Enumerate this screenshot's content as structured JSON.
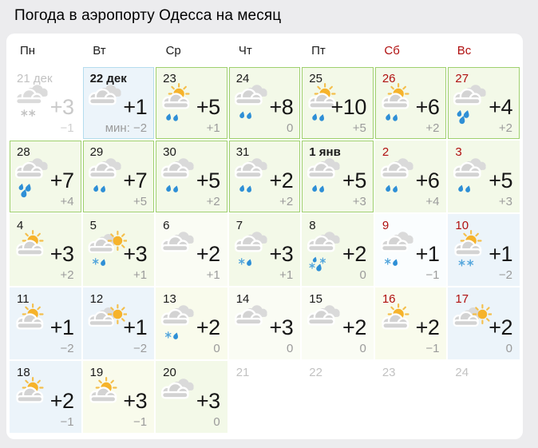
{
  "title": "Погода в аэропорту Одесса на месяц",
  "weekdays": [
    {
      "label": "Пн",
      "weekend": false
    },
    {
      "label": "Вт",
      "weekend": false
    },
    {
      "label": "Ср",
      "weekend": false
    },
    {
      "label": "Чт",
      "weekend": false
    },
    {
      "label": "Пт",
      "weekend": false
    },
    {
      "label": "Сб",
      "weekend": true
    },
    {
      "label": "Вс",
      "weekend": true
    }
  ],
  "cells": [
    {
      "day": "21 дек",
      "muted": true,
      "icon": "cloud",
      "precip": "snow-muted",
      "tmax": "+3",
      "tmin": "−1",
      "bg": "white",
      "border": "none"
    },
    {
      "day": "22 дек",
      "bold": true,
      "icon": "cloud",
      "precip": "none",
      "tmax": "+1",
      "tmin": "мин: −2",
      "bg": "blue",
      "border": "blue"
    },
    {
      "day": "23",
      "icon": "sun-cloud",
      "precip": "rain2",
      "tmax": "+5",
      "tmin": "+1",
      "bg": "green",
      "border": "green"
    },
    {
      "day": "24",
      "icon": "cloud",
      "precip": "rain2",
      "tmax": "+8",
      "tmin": "0",
      "bg": "green",
      "border": "green"
    },
    {
      "day": "25",
      "icon": "sun-cloud",
      "precip": "rain2",
      "tmax": "+10",
      "tmin": "+5",
      "bg": "green",
      "border": "green"
    },
    {
      "day": "26",
      "weekend": true,
      "icon": "sun-cloud",
      "precip": "rain2",
      "tmax": "+6",
      "tmin": "+2",
      "bg": "green",
      "border": "green"
    },
    {
      "day": "27",
      "weekend": true,
      "icon": "cloud",
      "precip": "rain3",
      "tmax": "+4",
      "tmin": "+2",
      "bg": "green",
      "border": "green"
    },
    {
      "day": "28",
      "icon": "cloud",
      "precip": "rain3",
      "tmax": "+7",
      "tmin": "+4",
      "bg": "green",
      "border": "green"
    },
    {
      "day": "29",
      "icon": "cloud",
      "precip": "rain2",
      "tmax": "+7",
      "tmin": "+5",
      "bg": "green",
      "border": "green"
    },
    {
      "day": "30",
      "icon": "cloud",
      "precip": "rain2",
      "tmax": "+5",
      "tmin": "+2",
      "bg": "green",
      "border": "green"
    },
    {
      "day": "31",
      "icon": "cloud",
      "precip": "rain2",
      "tmax": "+2",
      "tmin": "+2",
      "bg": "green",
      "border": "green"
    },
    {
      "day": "1 янв",
      "bold": true,
      "icon": "cloud",
      "precip": "rain2",
      "tmax": "+5",
      "tmin": "+3",
      "bg": "green",
      "border": "green"
    },
    {
      "day": "2",
      "weekend": true,
      "icon": "cloud",
      "precip": "rain2",
      "tmax": "+6",
      "tmin": "+4",
      "bg": "green",
      "border": "none"
    },
    {
      "day": "3",
      "weekend": true,
      "icon": "cloud",
      "precip": "rain2",
      "tmax": "+5",
      "tmin": "+3",
      "bg": "green",
      "border": "none"
    },
    {
      "day": "4",
      "icon": "sun-cloud",
      "precip": "none",
      "tmax": "+3",
      "tmin": "+2",
      "bg": "green",
      "border": "none"
    },
    {
      "day": "5",
      "icon": "cloud-sun",
      "precip": "sleet",
      "tmax": "+3",
      "tmin": "+1",
      "bg": "green",
      "border": "none"
    },
    {
      "day": "6",
      "icon": "cloud",
      "precip": "none",
      "tmax": "+2",
      "tmin": "+1",
      "bg": "green_light",
      "border": "none"
    },
    {
      "day": "7",
      "icon": "cloud",
      "precip": "sleet",
      "tmax": "+3",
      "tmin": "+1",
      "bg": "green",
      "border": "none"
    },
    {
      "day": "8",
      "icon": "cloud",
      "precip": "sleet-heavy",
      "tmax": "+2",
      "tmin": "0",
      "bg": "green",
      "border": "none"
    },
    {
      "day": "9",
      "weekend": true,
      "icon": "cloud",
      "precip": "sleet",
      "tmax": "+1",
      "tmin": "−1",
      "bg": "blue_light",
      "border": "none"
    },
    {
      "day": "10",
      "weekend": true,
      "icon": "sun-cloud",
      "precip": "snow",
      "tmax": "+1",
      "tmin": "−2",
      "bg": "blue",
      "border": "none"
    },
    {
      "day": "11",
      "icon": "sun-cloud",
      "precip": "none",
      "tmax": "+1",
      "tmin": "−2",
      "bg": "blue",
      "border": "none"
    },
    {
      "day": "12",
      "icon": "cloud-sun",
      "precip": "none",
      "tmax": "+1",
      "tmin": "−2",
      "bg": "blue",
      "border": "none"
    },
    {
      "day": "13",
      "icon": "cloud",
      "precip": "sleet",
      "tmax": "+2",
      "tmin": "0",
      "bg": "yellow",
      "border": "none"
    },
    {
      "day": "14",
      "icon": "cloud",
      "precip": "none",
      "tmax": "+3",
      "tmin": "0",
      "bg": "green_light",
      "border": "none"
    },
    {
      "day": "15",
      "icon": "cloud",
      "precip": "none",
      "tmax": "+2",
      "tmin": "0",
      "bg": "green_light",
      "border": "none"
    },
    {
      "day": "16",
      "weekend": true,
      "icon": "sun-cloud",
      "precip": "none",
      "tmax": "+2",
      "tmin": "−1",
      "bg": "yellow",
      "border": "none"
    },
    {
      "day": "17",
      "weekend": true,
      "icon": "cloud-sun",
      "precip": "none",
      "tmax": "+2",
      "tmin": "0",
      "bg": "blue",
      "border": "none"
    },
    {
      "day": "18",
      "icon": "sun-cloud",
      "precip": "none",
      "tmax": "+2",
      "tmin": "−1",
      "bg": "blue",
      "border": "none"
    },
    {
      "day": "19",
      "icon": "sun-cloud",
      "precip": "none",
      "tmax": "+3",
      "tmin": "−1",
      "bg": "yellow",
      "border": "none"
    },
    {
      "day": "20",
      "icon": "cloud",
      "precip": "none",
      "tmax": "+3",
      "tmin": "0",
      "bg": "green",
      "border": "none"
    },
    {
      "day": "21",
      "empty": true
    },
    {
      "day": "22",
      "empty": true
    },
    {
      "day": "23",
      "empty": true
    },
    {
      "day": "24",
      "empty": true
    }
  ],
  "palette": {
    "page_bg": "#ececee",
    "panel_bg": "#ffffff",
    "weekend_red": "#b01010",
    "green_border": "#9fd06e",
    "blue_border": "#b5dcee",
    "bg_green": "#f3f9e8",
    "bg_green_light": "#fafcf4",
    "bg_blue": "#ecf4fa",
    "bg_blue_light": "#fafdfe",
    "bg_yellow": "#f9fbec",
    "bg_white": "#ffffff",
    "temp_main": "#161616",
    "temp_min": "#9b9b9b",
    "sun": "#f6b32b",
    "sun_ray": "#f4bf4c",
    "cloud_front": "#d3d3d3",
    "cloud_back": "#dadada",
    "cloud_muted": "#dbdbdb",
    "flake_muted": "#c4c4c4",
    "drop_blue": "#2e8fd6",
    "flake_blue": "#54a6dc"
  }
}
